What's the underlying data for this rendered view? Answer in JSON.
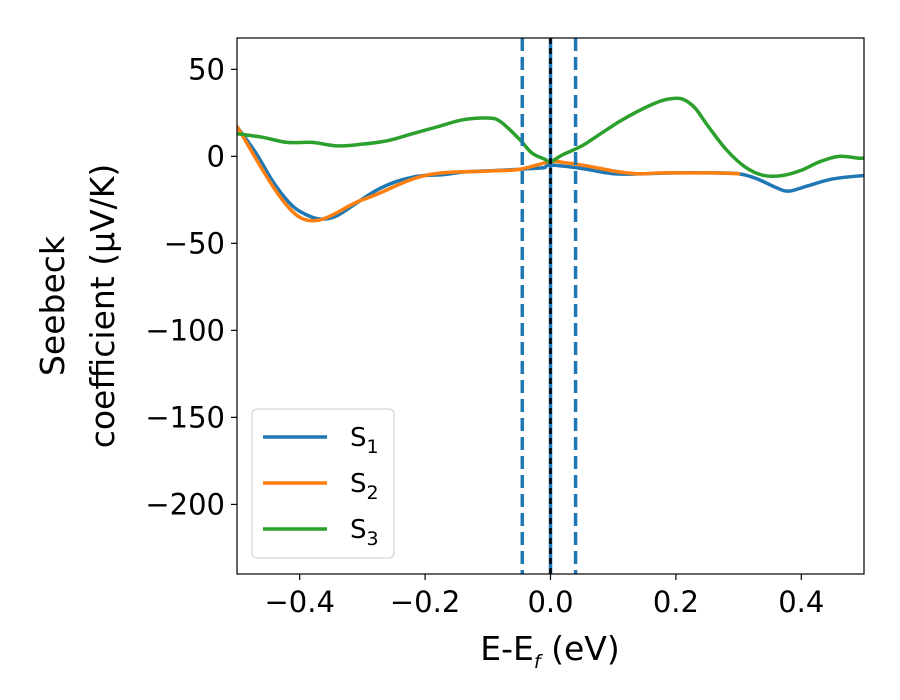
{
  "chart_data": {
    "type": "line",
    "xlabel": {
      "main": "E-E",
      "sub": "f",
      "unit": " (eV)"
    },
    "ylabel": {
      "line1": "Seebeck",
      "line2": "coefficient  (μV/K)"
    },
    "xlim": [
      -0.5,
      0.5
    ],
    "ylim": [
      -240,
      68
    ],
    "xticks": [
      -0.4,
      -0.2,
      0.0,
      0.2,
      0.4
    ],
    "xtick_labels": [
      "−0.4",
      "−0.2",
      "0.0",
      "0.2",
      "0.4"
    ],
    "yticks": [
      50,
      0,
      -50,
      -100,
      -150,
      -200
    ],
    "ytick_labels": [
      "50",
      "0",
      "−50",
      "−100",
      "−150",
      "−200"
    ],
    "grid": false,
    "legend_position": "lower-left",
    "series": [
      {
        "name": "S",
        "sub": "1",
        "color": "#1f77b4",
        "x": [
          -0.5,
          -0.47,
          -0.44,
          -0.41,
          -0.38,
          -0.36,
          -0.34,
          -0.31,
          -0.28,
          -0.25,
          -0.22,
          -0.2,
          -0.17,
          -0.14,
          -0.11,
          -0.08,
          -0.05,
          -0.03,
          -0.01,
          0.0,
          0.05,
          0.1,
          0.15,
          0.2,
          0.25,
          0.3,
          0.33,
          0.36,
          0.38,
          0.41,
          0.45,
          0.5
        ],
        "y": [
          17,
          2,
          -16,
          -29,
          -35,
          -36,
          -34,
          -27,
          -20,
          -15,
          -12,
          -11,
          -10.5,
          -9,
          -8.5,
          -8,
          -7.5,
          -7,
          -6.5,
          -5,
          -7,
          -10,
          -10,
          -9.5,
          -9.5,
          -10,
          -13,
          -18,
          -20,
          -17,
          -13,
          -11
        ]
      },
      {
        "name": "S",
        "sub": "2",
        "color": "#ff7f0e",
        "x": [
          -0.5,
          -0.4,
          -0.3,
          -0.2,
          -0.1,
          -0.05,
          0.0,
          0.02,
          0.05,
          0.08,
          0.11,
          0.14,
          0.18,
          0.22,
          0.26,
          0.3
        ],
        "y": [
          17,
          -35,
          -25,
          -11,
          -8.5,
          -7.5,
          -3,
          -3.5,
          -5,
          -7,
          -9,
          -10,
          -9.5,
          -9.5,
          -9.5,
          -10
        ]
      },
      {
        "name": "S",
        "sub": "3",
        "color": "#2ca02c",
        "x": [
          -0.5,
          -0.46,
          -0.42,
          -0.38,
          -0.34,
          -0.3,
          -0.26,
          -0.22,
          -0.18,
          -0.14,
          -0.1,
          -0.08,
          -0.05,
          -0.03,
          -0.01,
          0.0,
          0.02,
          0.05,
          0.08,
          0.11,
          0.14,
          0.17,
          0.19,
          0.21,
          0.23,
          0.25,
          0.28,
          0.31,
          0.34,
          0.37,
          0.4,
          0.43,
          0.46,
          0.49,
          0.5
        ],
        "y": [
          13,
          11,
          8,
          8,
          6,
          7,
          9,
          13,
          17,
          21,
          22,
          20,
          10,
          2,
          -1.5,
          -3,
          1,
          6,
          13,
          20,
          26,
          31,
          33,
          33,
          28,
          18,
          4,
          -6,
          -11,
          -11,
          -8,
          -3,
          0,
          -1,
          -1
        ]
      }
    ],
    "vlines": [
      {
        "x": -0.045,
        "style": "dashed",
        "color": "#1f77b4"
      },
      {
        "x": 0.0,
        "style": "solid",
        "color": "#1f77b4"
      },
      {
        "x": 0.0,
        "style": "dashed",
        "color": "#000000"
      },
      {
        "x": 0.04,
        "style": "dashed",
        "color": "#1f77b4"
      }
    ]
  }
}
